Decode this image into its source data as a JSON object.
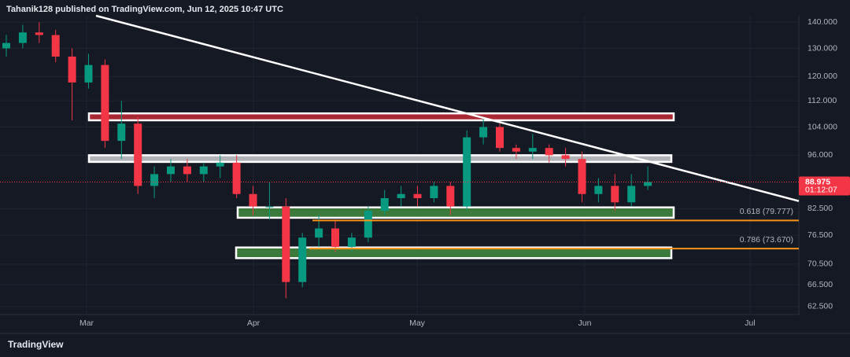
{
  "header": "Tahanik128 published on TradingView.com, Jun 12, 2025 10:47 UTC",
  "chart_data": {
    "type": "candlestick",
    "log_scale": true,
    "grid": true,
    "ylim": [
      61.1,
      142.6
    ],
    "yticks": [
      {
        "value": 140,
        "label": "140.000"
      },
      {
        "value": 130,
        "label": "130.000"
      },
      {
        "value": 120,
        "label": "120.000"
      },
      {
        "value": 112,
        "label": "112.000"
      },
      {
        "value": 104,
        "label": "104.000"
      },
      {
        "value": 96,
        "label": "96.000"
      },
      {
        "value": 82.5,
        "label": "82.500"
      },
      {
        "value": 76.5,
        "label": "76.500"
      },
      {
        "value": 70.5,
        "label": "70.500"
      },
      {
        "value": 66.5,
        "label": "66.500"
      },
      {
        "value": 62.5,
        "label": "62.500"
      }
    ],
    "time_labels": [
      "Mar",
      "Apr",
      "May",
      "Jun",
      "Jul"
    ],
    "up_color": "#089981",
    "down_color": "#f23645",
    "open": [
      130,
      132,
      136,
      135,
      127,
      118,
      124,
      100,
      105,
      88,
      91,
      93,
      91,
      93,
      94,
      86,
      83,
      83,
      67,
      76,
      78,
      74,
      76,
      82,
      85,
      86,
      85,
      88,
      83,
      101,
      104,
      98,
      97,
      98,
      96,
      95,
      86,
      88,
      84,
      88
    ],
    "high": [
      135,
      139,
      140,
      137,
      130,
      128,
      126,
      112,
      107,
      93,
      95,
      95,
      94,
      96,
      96,
      88,
      89,
      85,
      77,
      81,
      80,
      77,
      83,
      87,
      88,
      88,
      89,
      89,
      103,
      107,
      105,
      99,
      102,
      99,
      98,
      97,
      90,
      91,
      91,
      93
    ],
    "low": [
      127,
      130,
      132,
      125,
      106,
      116,
      98,
      95,
      86,
      85,
      89,
      89,
      89,
      90,
      85,
      81,
      80,
      64,
      66,
      74,
      73,
      73,
      75,
      81,
      83,
      83,
      84,
      81,
      82,
      99,
      97,
      95,
      95,
      94,
      93,
      84,
      84,
      82,
      83,
      87
    ],
    "close": [
      132,
      136,
      135,
      127,
      118,
      124,
      100,
      105,
      88,
      91,
      93,
      91,
      93,
      94,
      86,
      83,
      83,
      67,
      76,
      78,
      74,
      76,
      82,
      85,
      86,
      85,
      88,
      83,
      101,
      104,
      98,
      97,
      98,
      96,
      95,
      86,
      88,
      84,
      88,
      88.975
    ],
    "last_price": 88.975,
    "countdown": "01:12:07",
    "zones": [
      {
        "bottom": 106,
        "top": 108.1,
        "color": "#a82833"
      },
      {
        "bottom": 94.2,
        "top": 96,
        "color": "#b0b3b8"
      },
      {
        "bottom": 80.4,
        "top": 82.8,
        "color": "#3b7a3b"
      },
      {
        "bottom": 71.7,
        "top": 73.9,
        "color": "#3b7a3b"
      }
    ],
    "trendline": [
      142.6,
      84.3
    ],
    "fib_color": "#f7931a",
    "fib_levels": [
      {
        "label": "0.618 (79.777)",
        "value": 79.777
      },
      {
        "label": "0.786 (73.670)",
        "value": 73.67
      }
    ]
  },
  "footer": "TradingView"
}
